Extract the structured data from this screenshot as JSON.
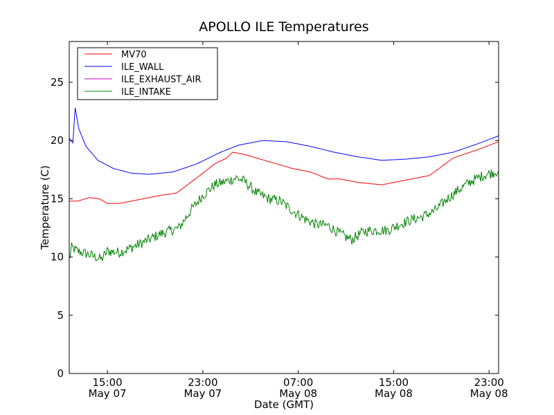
{
  "chart_data": {
    "type": "line",
    "title": "APOLLO ILE Temperatures",
    "xlabel": "Date (GMT)",
    "ylabel": "Temperature (C)",
    "xlim_hours": [
      11.8,
      47.8
    ],
    "ylim": [
      0,
      28.5
    ],
    "yticks": [
      0,
      5,
      10,
      15,
      20,
      25
    ],
    "xticks": [
      {
        "hour": 15,
        "time": "15:00",
        "date": "May 07"
      },
      {
        "hour": 23,
        "time": "23:00",
        "date": "May 07"
      },
      {
        "hour": 31,
        "time": "07:00",
        "date": "May 08"
      },
      {
        "hour": 39,
        "time": "15:00",
        "date": "May 08"
      },
      {
        "hour": 47,
        "time": "23:00",
        "date": "May 08"
      }
    ],
    "grid": false,
    "legend_position": "top-left",
    "series": [
      {
        "name": "MV70",
        "color": "#ff0000",
        "x": [
          11.8,
          12.5,
          13.5,
          14.3,
          15.0,
          16.0,
          18.0,
          19.5,
          20.8,
          22.5,
          24.0,
          25.0,
          25.5,
          26.5,
          28.5,
          30.5,
          32.0,
          33.5,
          34.5,
          36.0,
          38.0,
          40.0,
          42.0,
          44.0,
          46.0,
          47.8
        ],
        "y": [
          14.8,
          14.8,
          15.1,
          15.0,
          14.6,
          14.6,
          15.0,
          15.3,
          15.5,
          16.8,
          18.0,
          18.5,
          19.0,
          18.8,
          18.2,
          17.6,
          17.3,
          16.7,
          16.7,
          16.4,
          16.2,
          16.6,
          17.0,
          18.5,
          19.2,
          19.9
        ]
      },
      {
        "name": "ILE_WALL",
        "color": "#0000ff",
        "x": [
          11.8,
          12.1,
          12.3,
          12.6,
          13.2,
          14.2,
          15.5,
          17.0,
          18.5,
          20.5,
          22.5,
          24.5,
          26.0,
          28.0,
          30.0,
          32.0,
          34.0,
          36.0,
          38.0,
          40.0,
          42.0,
          44.0,
          46.0,
          47.8
        ],
        "y": [
          20.2,
          19.8,
          22.8,
          21.0,
          19.5,
          18.3,
          17.6,
          17.2,
          17.1,
          17.3,
          18.0,
          19.0,
          19.6,
          20.0,
          19.9,
          19.5,
          19.0,
          18.6,
          18.3,
          18.4,
          18.6,
          19.0,
          19.7,
          20.4
        ]
      },
      {
        "name": "ILE_EXHAUST_AIR",
        "color": "#bf00bf",
        "x": [],
        "y": []
      },
      {
        "name": "ILE_INTAKE",
        "color": "#007f00",
        "x": [
          11.8,
          12.0,
          12.5,
          13.5,
          14.0,
          14.5,
          15.0,
          16.0,
          17.0,
          18.5,
          19.5,
          21.0,
          22.0,
          23.0,
          24.0,
          25.0,
          25.8,
          26.5,
          27.5,
          28.5,
          29.5,
          30.5,
          31.5,
          32.5,
          33.5,
          34.5,
          35.0,
          35.5,
          36.5,
          37.5,
          38.5,
          39.5,
          40.5,
          41.5,
          42.5,
          43.5,
          44.5,
          45.5,
          46.5,
          47.8
        ],
        "y": [
          9.8,
          10.8,
          10.5,
          10.2,
          10.0,
          9.8,
          10.5,
          10.4,
          10.8,
          11.5,
          12.0,
          12.5,
          14.0,
          15.3,
          16.2,
          16.5,
          16.8,
          16.5,
          15.5,
          15.0,
          14.8,
          14.0,
          13.3,
          12.8,
          12.7,
          12.0,
          11.7,
          11.5,
          12.2,
          12.3,
          12.3,
          12.8,
          13.2,
          13.5,
          14.0,
          15.0,
          15.8,
          16.5,
          17.0,
          17.4
        ]
      }
    ]
  }
}
